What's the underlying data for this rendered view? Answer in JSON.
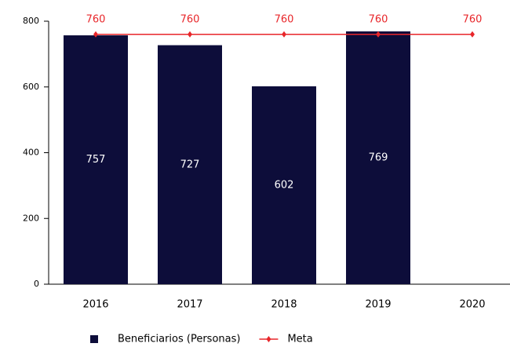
{
  "chart_data": {
    "type": "bar",
    "categories": [
      "2016",
      "2017",
      "2018",
      "2019",
      "2020"
    ],
    "series": [
      {
        "name": "Beneficiarios (Personas)",
        "color": "#0d0d3a",
        "values": [
          757,
          727,
          602,
          769,
          null
        ]
      },
      {
        "name": "Meta",
        "type": "line",
        "color": "#e8262a",
        "values": [
          760,
          760,
          760,
          760,
          760
        ]
      }
    ],
    "ylim": [
      0,
      800
    ],
    "yticks": [
      0,
      200,
      400,
      600,
      800
    ],
    "grid": false
  }
}
